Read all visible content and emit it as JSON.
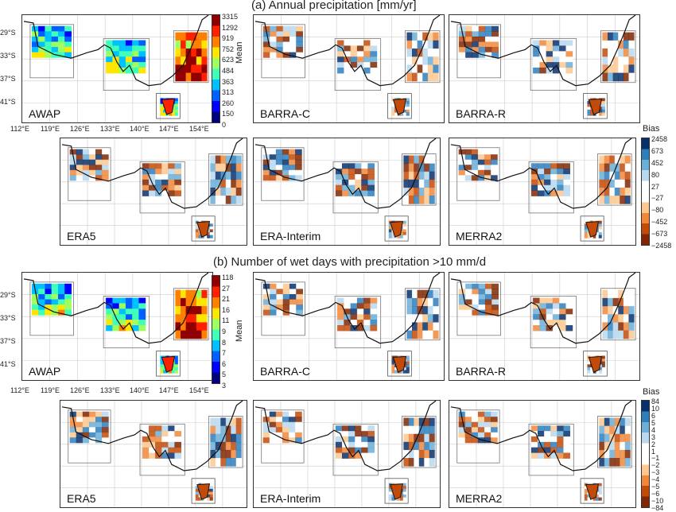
{
  "chart_data": [
    {
      "type": "heatmap",
      "title": "(a) Annual precipitation [mm/yr]",
      "panels": [
        "AWAP",
        "BARRA-C",
        "BARRA-R",
        "ERA5",
        "ERA-Interim",
        "MERRA2"
      ],
      "x_ticks": [
        "112°E",
        "119°E",
        "126°E",
        "133°E",
        "140°E",
        "147°E",
        "154°E"
      ],
      "y_ticks": [
        "29°S",
        "33°S",
        "37°S",
        "41°S"
      ],
      "mean_colorbar": {
        "label": "Mean",
        "ticks": [
          "3315",
          "1292",
          "919",
          "752",
          "623",
          "484",
          "363",
          "313",
          "260",
          "150",
          "0"
        ]
      },
      "bias_colorbar": {
        "label": "Bias",
        "ticks": [
          "2458",
          "673",
          "452",
          "80",
          "27",
          "−27",
          "−80",
          "−452",
          "−673",
          "−2458"
        ]
      }
    },
    {
      "type": "heatmap",
      "title": "(b) Number of wet days with precipitation >10 mm/d",
      "panels": [
        "AWAP",
        "BARRA-C",
        "BARRA-R",
        "ERA5",
        "ERA-Interim",
        "MERRA2"
      ],
      "x_ticks": [
        "112°E",
        "119°E",
        "126°E",
        "133°E",
        "140°E",
        "147°E",
        "154°E"
      ],
      "y_ticks": [
        "29°S",
        "33°S",
        "37°S",
        "41°S"
      ],
      "mean_colorbar": {
        "label": "Mean",
        "ticks": [
          "118",
          "27",
          "21",
          "16",
          "11",
          "9",
          "8",
          "7",
          "6",
          "5",
          "3"
        ]
      },
      "bias_colorbar": {
        "label": "Bias",
        "ticks": [
          "84",
          "10",
          "6",
          "5",
          "4",
          "3",
          "2",
          "1",
          "−1",
          "−2",
          "−3",
          "−4",
          "−5",
          "−6",
          "−10",
          "−84"
        ]
      }
    }
  ],
  "colors": {
    "mean_scale": [
      "#00007f",
      "#0000ff",
      "#0060ff",
      "#00c0ff",
      "#40ffb8",
      "#a0ff60",
      "#ffe600",
      "#ff8000",
      "#ff2000",
      "#900000"
    ],
    "bias_scale": [
      "#7f2704",
      "#c24b0a",
      "#f0883c",
      "#fcc88f",
      "#ffffff",
      "#ffffff",
      "#b9d7ee",
      "#6baed6",
      "#2f7ebc",
      "#08306b"
    ],
    "land": "#ffffff",
    "coast": "#111111"
  }
}
